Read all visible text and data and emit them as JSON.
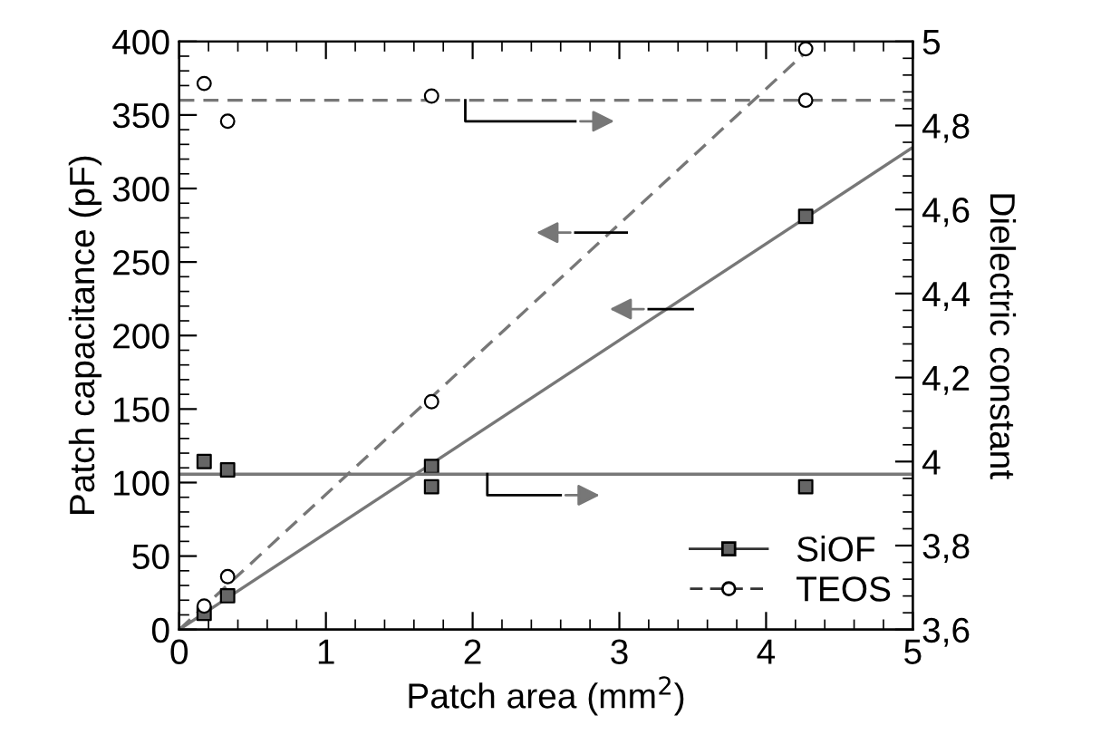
{
  "chart_data": {
    "type": "scatter",
    "xlabel": "Patch area (mm$^{2}$)",
    "ylabel": "Patch capacitance (pF)",
    "y2label": "Dielectric constant",
    "xlim": [
      0,
      5
    ],
    "xticks": [
      0,
      1,
      2,
      3,
      4,
      5
    ],
    "ylim": [
      0,
      400
    ],
    "yticks": [
      0,
      50,
      100,
      150,
      200,
      250,
      300,
      350,
      400
    ],
    "y2lim": [
      3.6,
      5
    ],
    "y2ticks": [
      {
        "value": 3.6,
        "label": "3,6"
      },
      {
        "value": 3.8,
        "label": "3,8"
      },
      {
        "value": 4,
        "label": "4"
      },
      {
        "value": 4.2,
        "label": "4,2"
      },
      {
        "value": 4.4,
        "label": "4,4"
      },
      {
        "value": 4.6,
        "label": "4,6"
      },
      {
        "value": 4.8,
        "label": "4,8"
      },
      {
        "value": 5,
        "label": "5"
      }
    ],
    "grid": false,
    "legend": "bottom right",
    "series": [
      {
        "name": "SiOF",
        "marker": "square",
        "line_style": "solid",
        "color": "#666666",
        "x": [
          0.17,
          0.33,
          1.72,
          4.27
        ],
        "values": [
          11,
          23,
          111,
          281
        ]
      },
      {
        "name": "TEOS",
        "marker": "circle",
        "line_style": "dashed",
        "color": "#ffffff",
        "x": [
          0.17,
          0.33,
          1.72,
          4.27
        ],
        "values": [
          16,
          36,
          155,
          395
        ]
      },
      {
        "marker": "square",
        "color": "#666666",
        "axis": "y2",
        "x": [
          0.17,
          0.33,
          1.72,
          4.27
        ],
        "values": [
          4.0,
          3.98,
          3.94,
          3.94
        ]
      },
      {
        "marker": "circle",
        "color": "#ffffff",
        "axis": "y2",
        "x": [
          0.17,
          0.33,
          1.72,
          4.27
        ],
        "values": [
          4.9,
          4.81,
          4.87,
          4.86
        ]
      },
      {
        "type": "line",
        "line_style": "solid",
        "color": "#777777",
        "x": [
          0,
          5
        ],
        "values": [
          0,
          328
        ]
      },
      {
        "type": "line",
        "line_style": "dashed",
        "color": "#777777",
        "x": [
          0,
          4.35
        ],
        "values": [
          0,
          400
        ]
      },
      {
        "type": "line",
        "line_style": "solid",
        "color": "#777777",
        "axis": "y2",
        "x": [
          0,
          5
        ],
        "values": [
          3.97,
          3.97
        ]
      },
      {
        "type": "line",
        "line_style": "dashed",
        "color": "#777777",
        "axis": "y2",
        "x": [
          0,
          5
        ],
        "values": [
          4.86,
          4.86
        ]
      }
    ]
  }
}
